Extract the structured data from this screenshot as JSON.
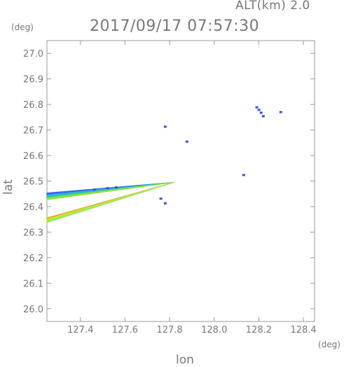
{
  "chart_data": {
    "type": "scatter",
    "title": "2017/09/17 07:57:30",
    "annotation": "ALT(km) 2.0",
    "xlabel": "lon",
    "ylabel": "lat",
    "x_unit": "(deg)",
    "y_unit": "(deg)",
    "xlim": [
      127.25,
      128.45
    ],
    "ylim": [
      25.95,
      27.05
    ],
    "xticks": [
      "127.4",
      "127.6",
      "127.8",
      "128.0",
      "128.2",
      "128.4"
    ],
    "yticks": [
      "26.0",
      "26.1",
      "26.2",
      "26.3",
      "26.4",
      "26.5",
      "26.6",
      "26.7",
      "26.8",
      "26.9",
      "27.0"
    ],
    "grid": false,
    "radar_origin": [
      127.82,
      26.495
    ],
    "beam_streaks": [
      {
        "x0": 127.25,
        "y0": 26.447,
        "width_deg": 0.012,
        "color": "#3a66f0"
      },
      {
        "x0": 127.25,
        "y0": 26.441,
        "width_deg": 0.008,
        "color": "#22b8e8"
      },
      {
        "x0": 127.25,
        "y0": 26.435,
        "width_deg": 0.008,
        "color": "#2fd08a"
      },
      {
        "x0": 127.25,
        "y0": 26.43,
        "width_deg": 0.006,
        "color": "#8ee040"
      },
      {
        "x0": 127.25,
        "y0": 26.352,
        "width_deg": 0.007,
        "color": "#f0a020"
      },
      {
        "x0": 127.25,
        "y0": 26.346,
        "width_deg": 0.008,
        "color": "#c8ec30"
      },
      {
        "x0": 127.25,
        "y0": 26.341,
        "width_deg": 0.006,
        "color": "#9ae85a"
      }
    ],
    "echo_points": [
      {
        "lon": 127.7804,
        "lat": 26.7129,
        "color": "#3550e8"
      },
      {
        "lon": 127.8781,
        "lat": 26.6544,
        "color": "#3550e8"
      },
      {
        "lon": 128.1323,
        "lat": 26.5235,
        "color": "#3550e8"
      },
      {
        "lon": 127.7608,
        "lat": 26.4311,
        "color": "#3550e8"
      },
      {
        "lon": 127.7804,
        "lat": 26.4128,
        "color": "#3550e8"
      },
      {
        "lon": 128.1909,
        "lat": 26.7885,
        "color": "#3550e8"
      },
      {
        "lon": 128.2007,
        "lat": 26.7787,
        "color": "#3550e8"
      },
      {
        "lon": 128.2104,
        "lat": 26.7676,
        "color": "#3550e8"
      },
      {
        "lon": 128.2202,
        "lat": 26.754,
        "color": "#3550e8"
      },
      {
        "lon": 128.2984,
        "lat": 26.7702,
        "color": "#3550e8"
      },
      {
        "lon": 127.4629,
        "lat": 26.4665,
        "color": "#3550e8"
      },
      {
        "lon": 127.5216,
        "lat": 26.4721,
        "color": "#3550e8"
      },
      {
        "lon": 127.5607,
        "lat": 26.4752,
        "color": "#3550e8"
      }
    ],
    "colors": {
      "axis": "#9a9a9a",
      "text": "#777777"
    }
  }
}
